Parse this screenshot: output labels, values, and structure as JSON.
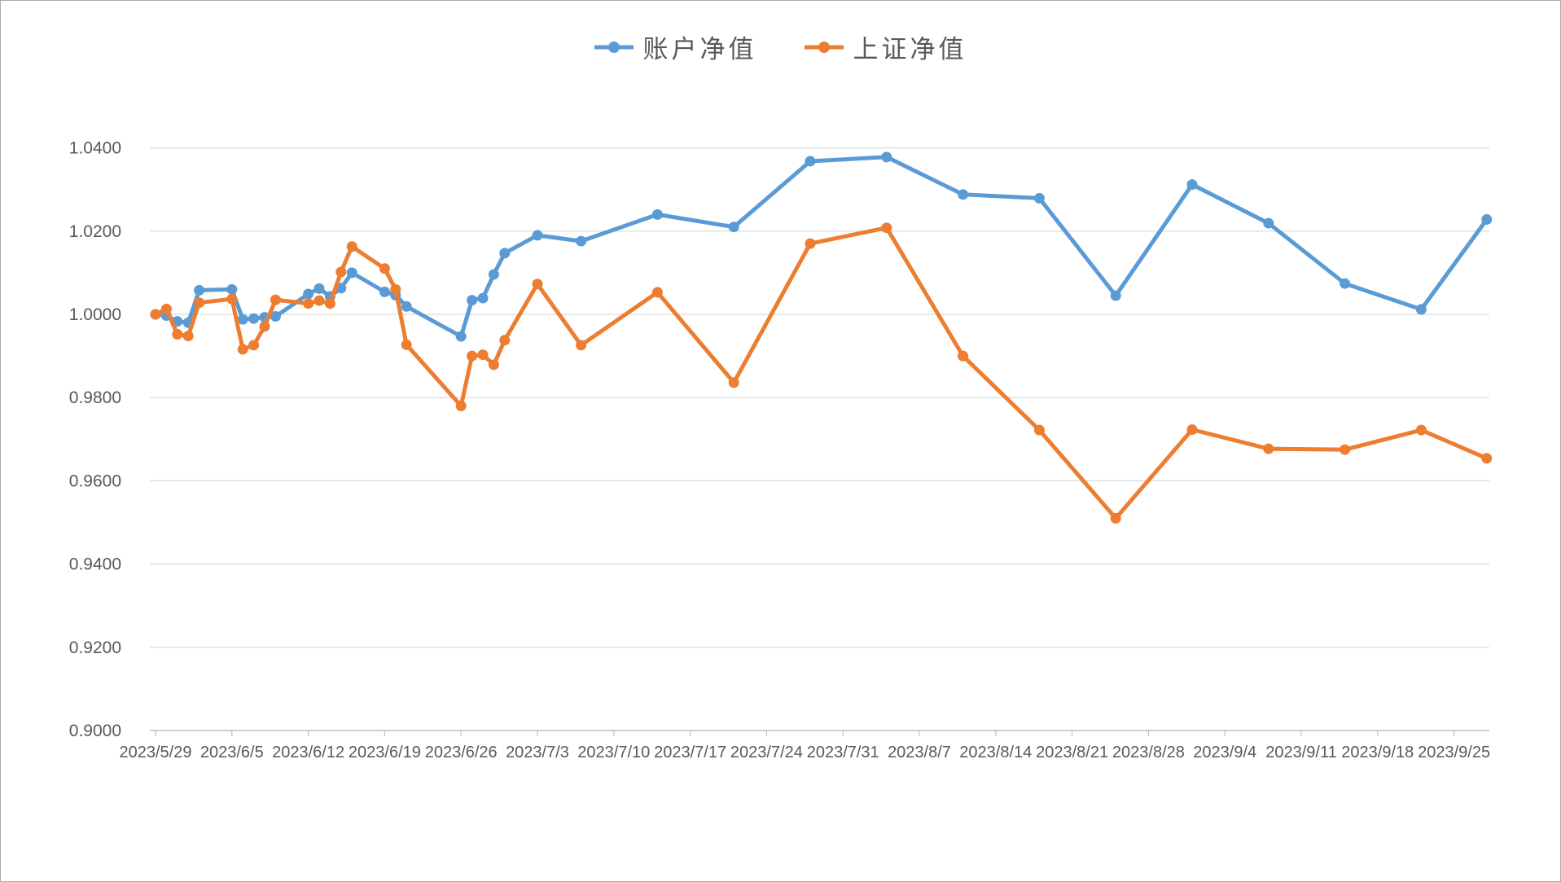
{
  "chart_data": {
    "type": "line",
    "title": "",
    "xlabel": "",
    "ylabel": "",
    "ylim": [
      0.9,
      1.04
    ],
    "y_grid_step": 0.02,
    "grid": "horizontal-only",
    "legend_position": "top-center",
    "y_tick_labels": [
      "1.0400",
      "1.0200",
      "1.0000",
      "0.9800",
      "0.9600",
      "0.9400",
      "0.9200",
      "0.9000"
    ],
    "x_tick_labels": [
      "2023/5/29",
      "2023/6/5",
      "2023/6/12",
      "2023/6/19",
      "2023/6/26",
      "2023/7/3",
      "2023/7/10",
      "2023/7/17",
      "2023/7/24",
      "2023/7/31",
      "2023/8/7",
      "2023/8/14",
      "2023/8/21",
      "2023/8/28",
      "2023/9/4",
      "2023/9/11",
      "2023/9/18",
      "2023/9/25"
    ],
    "x_tick_day_offsets": [
      0,
      7,
      14,
      21,
      28,
      35,
      42,
      49,
      56,
      63,
      70,
      77,
      84,
      91,
      98,
      105,
      112,
      119
    ],
    "point_dates": [
      "2023/5/29",
      "2023/5/30",
      "2023/5/31",
      "2023/6/1",
      "2023/6/2",
      "2023/6/5",
      "2023/6/6",
      "2023/6/7",
      "2023/6/8",
      "2023/6/9",
      "2023/6/12",
      "2023/6/13",
      "2023/6/14",
      "2023/6/15",
      "2023/6/16",
      "2023/6/19",
      "2023/6/20",
      "2023/6/21",
      "2023/6/26",
      "2023/6/27",
      "2023/6/28",
      "2023/6/29",
      "2023/6/30",
      "2023/7/3",
      "2023/7/7",
      "2023/7/14",
      "2023/7/21",
      "2023/7/28",
      "2023/8/4",
      "2023/8/11",
      "2023/8/18",
      "2023/8/25",
      "2023/9/1",
      "2023/9/8",
      "2023/9/15",
      "2023/9/22",
      "2023/9/28"
    ],
    "point_day_offsets": [
      0,
      1,
      2,
      3,
      4,
      7,
      8,
      9,
      10,
      11,
      14,
      15,
      16,
      17,
      18,
      21,
      22,
      23,
      28,
      29,
      30,
      31,
      32,
      35,
      39,
      46,
      53,
      60,
      67,
      74,
      81,
      88,
      95,
      102,
      109,
      116,
      122
    ],
    "series": [
      {
        "name": "账户净值",
        "color": "#5B9BD5",
        "values": [
          1.0,
          0.9997,
          0.9983,
          0.998,
          1.0058,
          1.006,
          0.9988,
          0.999,
          0.9993,
          0.9995,
          1.0049,
          1.0062,
          1.0043,
          1.0063,
          1.01,
          1.0054,
          1.0046,
          1.0019,
          0.9947,
          1.0034,
          1.0039,
          1.0096,
          1.0147,
          1.019,
          1.0176,
          1.024,
          1.021,
          1.0368,
          1.0378,
          1.0288,
          1.0279,
          1.0045,
          1.0312,
          1.0219,
          1.0074,
          1.0012,
          1.0228
        ]
      },
      {
        "name": "上证净值",
        "color": "#ED7D31",
        "values": [
          1.0,
          1.0013,
          0.9952,
          0.9948,
          1.0028,
          1.0037,
          0.9916,
          0.9926,
          0.9971,
          1.0035,
          1.0026,
          1.0033,
          1.0026,
          1.0102,
          1.0163,
          1.011,
          1.006,
          0.9927,
          0.978,
          0.99,
          0.9903,
          0.9879,
          0.9938,
          1.0073,
          0.9926,
          1.0053,
          0.9836,
          1.017,
          1.0208,
          0.99,
          0.9722,
          0.951,
          0.9723,
          0.9677,
          0.9675,
          0.9722,
          0.9654
        ]
      }
    ],
    "colors": {
      "gridline": "#D9D9D9",
      "axis_line": "#BFBFBF",
      "tick": "#BFBFBF",
      "label_text": "#595959"
    }
  }
}
